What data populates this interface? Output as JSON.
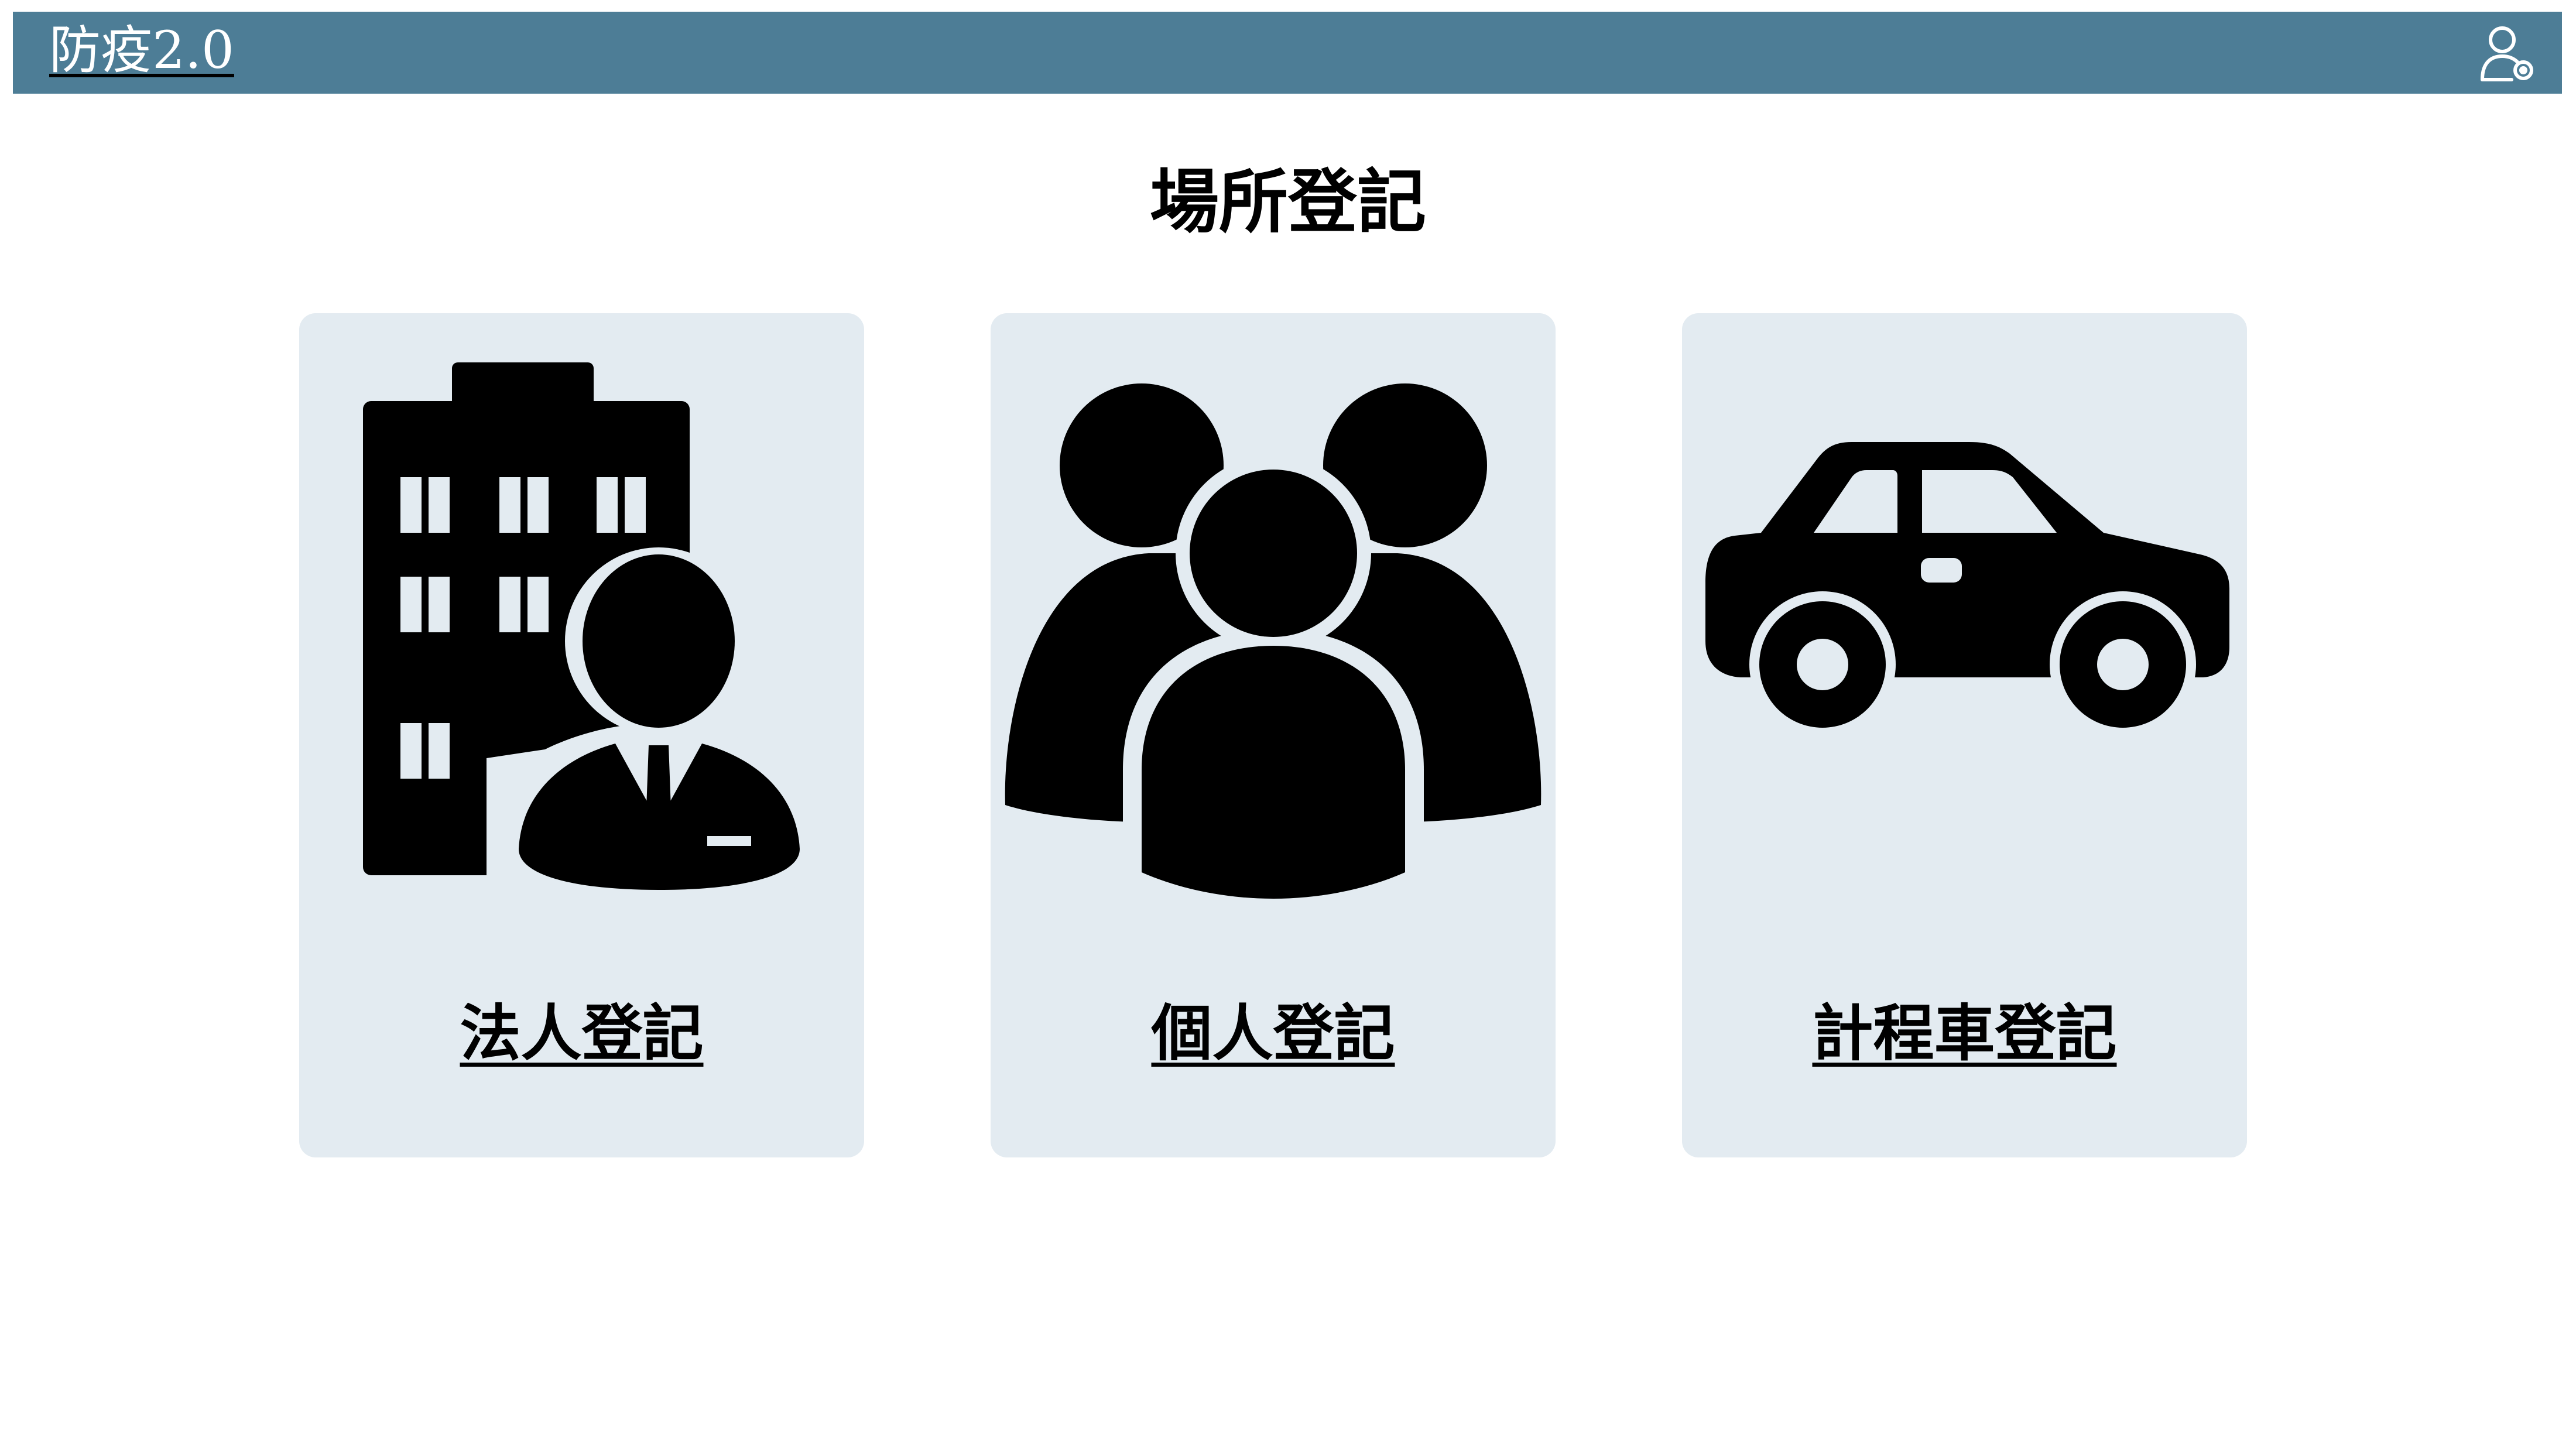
{
  "header": {
    "brand": "防疫2.0",
    "user_icon": "user-settings-icon",
    "bg_color": "#4d7d96"
  },
  "main": {
    "title": "場所登記",
    "cards": [
      {
        "label": "法人登記",
        "icon": "building-person-icon"
      },
      {
        "label": "個人登記",
        "icon": "people-group-icon"
      },
      {
        "label": "計程車登記",
        "icon": "car-icon"
      }
    ],
    "card_color": "#e3ebf1"
  }
}
